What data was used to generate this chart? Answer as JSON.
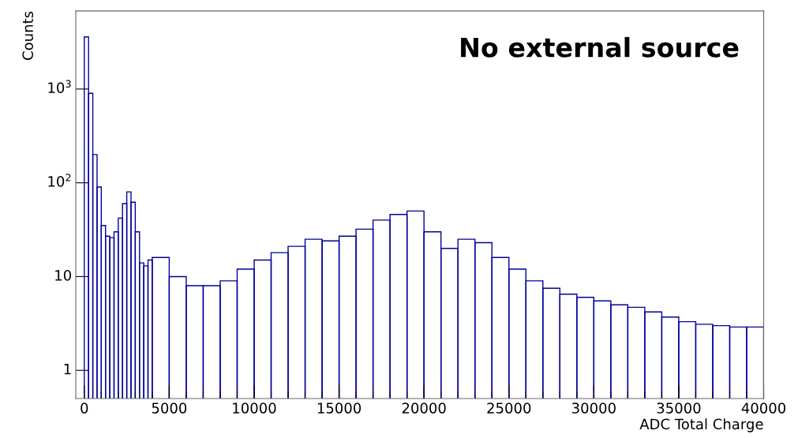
{
  "chart_data": {
    "type": "histogram",
    "xlabel": "ADC Total Charge",
    "ylabel": "Counts",
    "annotations": [
      "No external source"
    ],
    "color": "#000099",
    "bins": [
      0,
      250,
      500,
      750,
      1000,
      1250,
      1500,
      1750,
      2000,
      2250,
      2500,
      2750,
      3000,
      3250,
      3500,
      3750,
      4000,
      5000,
      6000,
      7000,
      8000,
      9000,
      10000,
      11000,
      12000,
      13000,
      14000,
      15000,
      16000,
      17000,
      18000,
      19000,
      20000,
      21000,
      22000,
      23000,
      24000,
      25000,
      26000,
      27000,
      28000,
      29000,
      30000,
      31000,
      32000,
      33000,
      34000,
      35000,
      36000,
      37000,
      38000,
      39000,
      40000
    ],
    "values": [
      3600,
      900,
      200,
      90,
      35,
      27,
      26,
      30,
      42,
      60,
      80,
      62,
      30,
      14,
      13,
      15,
      16,
      10,
      8,
      8,
      9,
      12,
      15,
      18,
      21,
      25,
      24,
      27,
      32,
      40,
      46,
      50,
      30,
      20,
      25,
      23,
      16,
      12,
      9,
      7.5,
      6.5,
      6,
      5.5,
      5,
      4.7,
      4.2,
      3.7,
      3.3,
      3.1,
      3,
      2.9,
      2.9
    ],
    "log": "y",
    "xlim": [
      -500,
      40000
    ],
    "ylim": [
      0.5,
      6800
    ],
    "xticks": [
      0,
      5000,
      10000,
      15000,
      20000,
      25000,
      30000,
      35000,
      40000
    ],
    "yticks": [
      1,
      10,
      {
        "value": 100,
        "label": "10$^{2}$"
      },
      {
        "value": 1000,
        "label": "10$^{3}$"
      }
    ],
    "grid": false
  }
}
